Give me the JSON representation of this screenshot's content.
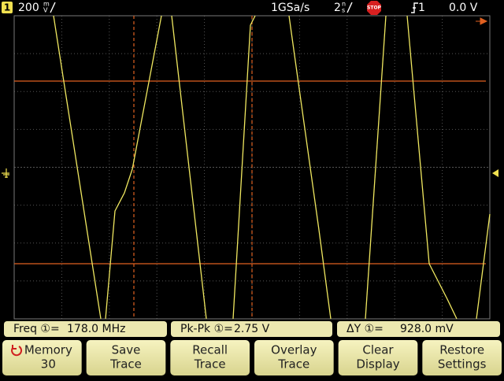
{
  "status_bar": {
    "channel": "1",
    "scale_value": "200",
    "scale_unit_top": "m",
    "scale_unit_bottom": "V",
    "sample_rate": "1GSa/s",
    "timebase_value": "2",
    "timebase_unit_top": "n",
    "timebase_unit_bottom": "s",
    "run_state": "STOP",
    "trigger_source": "1",
    "trigger_level": "0.0 V"
  },
  "measurements": [
    {
      "label": "Freq ①=",
      "value": "178.0 MHz"
    },
    {
      "label": "Pk-Pk ①=",
      "value": "2.75 V"
    },
    {
      "label": "ΔY ①=",
      "value": "928.0 mV"
    }
  ],
  "softkeys": [
    {
      "line1": "Memory",
      "line2": "30"
    },
    {
      "line1": "Save",
      "line2": "Trace"
    },
    {
      "line1": "Recall",
      "line2": "Trace"
    },
    {
      "line1": "Overlay",
      "line2": "Trace"
    },
    {
      "line1": "Clear",
      "line2": "Display"
    },
    {
      "line1": "Restore",
      "line2": "Settings"
    }
  ]
}
